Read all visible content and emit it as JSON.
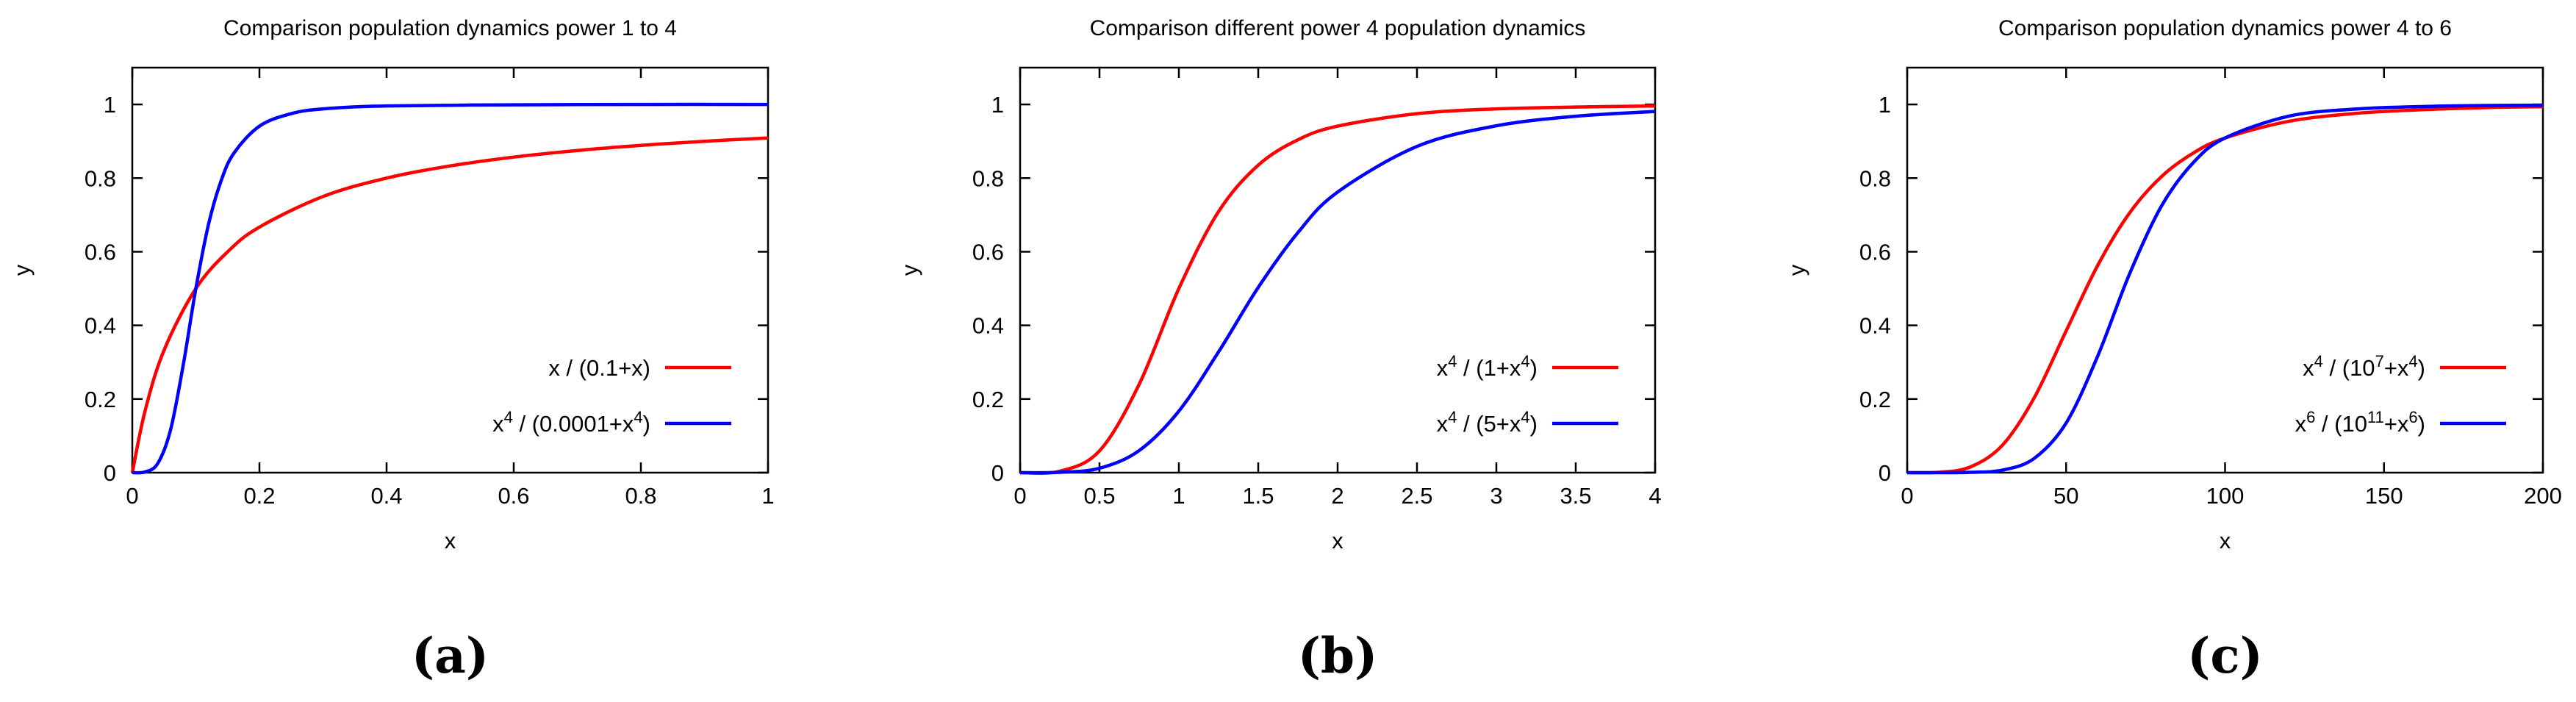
{
  "chart_data": [
    {
      "type": "line",
      "title": "Comparison population dynamics power 1 to 4",
      "xlabel": "x",
      "ylabel": "y",
      "xlim": [
        0,
        1
      ],
      "ylim": [
        0,
        1.1
      ],
      "xticks": [
        "0",
        "0.2",
        "0.4",
        "0.6",
        "0.8",
        "1"
      ],
      "yticks": [
        "0",
        "0.2",
        "0.4",
        "0.6",
        "0.8",
        "1"
      ],
      "legend_position": "lower-right",
      "grid": false,
      "caption": "(a)",
      "series": [
        {
          "name": "x / (0.1+x)",
          "name_parts": [
            {
              "t": "x / (0.1+x)",
              "sup": false
            }
          ],
          "color": "#ff0000",
          "x": [
            0,
            0.02,
            0.05,
            0.1,
            0.15,
            0.2,
            0.3,
            0.4,
            0.5,
            0.6,
            0.7,
            0.8,
            0.9,
            1.0
          ],
          "y": [
            0,
            0.167,
            0.333,
            0.5,
            0.6,
            0.667,
            0.75,
            0.8,
            0.833,
            0.857,
            0.875,
            0.889,
            0.9,
            0.909
          ]
        },
        {
          "name": "x^4 / (0.0001+x^4)",
          "name_parts": [
            {
              "t": "x",
              "sup": false
            },
            {
              "t": "4",
              "sup": true
            },
            {
              "t": " / (0.0001+x",
              "sup": false
            },
            {
              "t": "4",
              "sup": true
            },
            {
              "t": ")",
              "sup": false
            }
          ],
          "color": "#0000ff",
          "x": [
            0,
            0.02,
            0.04,
            0.06,
            0.08,
            0.1,
            0.12,
            0.14,
            0.16,
            0.2,
            0.25,
            0.3,
            0.4,
            0.6,
            0.8,
            1.0
          ],
          "y": [
            0,
            0.002,
            0.025,
            0.115,
            0.291,
            0.5,
            0.675,
            0.794,
            0.868,
            0.941,
            0.975,
            0.988,
            0.996,
            0.999,
            1.0,
            1.0
          ]
        }
      ]
    },
    {
      "type": "line",
      "title": "Comparison different power 4 population dynamics",
      "xlabel": "x",
      "ylabel": "y",
      "xlim": [
        0,
        4
      ],
      "ylim": [
        0,
        1.1
      ],
      "xticks": [
        "0",
        "0.5",
        "1",
        "1.5",
        "2",
        "2.5",
        "3",
        "3.5",
        "4"
      ],
      "yticks": [
        "0",
        "0.2",
        "0.4",
        "0.6",
        "0.8",
        "1"
      ],
      "legend_position": "lower-right",
      "grid": false,
      "caption": "(b)",
      "series": [
        {
          "name": "x^4 / (1+x^4)",
          "name_parts": [
            {
              "t": "x",
              "sup": false
            },
            {
              "t": "4",
              "sup": true
            },
            {
              "t": " / (1+x",
              "sup": false
            },
            {
              "t": "4",
              "sup": true
            },
            {
              "t": ")",
              "sup": false
            }
          ],
          "color": "#ff0000",
          "x": [
            0,
            0.25,
            0.5,
            0.75,
            1.0,
            1.25,
            1.5,
            1.75,
            2.0,
            2.5,
            3.0,
            3.5,
            4.0
          ],
          "y": [
            0,
            0.004,
            0.059,
            0.24,
            0.5,
            0.709,
            0.835,
            0.904,
            0.941,
            0.975,
            0.988,
            0.993,
            0.996
          ]
        },
        {
          "name": "x^4 / (5+x^4)",
          "name_parts": [
            {
              "t": "x",
              "sup": false
            },
            {
              "t": "4",
              "sup": true
            },
            {
              "t": " / (5+x",
              "sup": false
            },
            {
              "t": "4",
              "sup": true
            },
            {
              "t": ")",
              "sup": false
            }
          ],
          "color": "#0000ff",
          "x": [
            0,
            0.25,
            0.5,
            0.75,
            1.0,
            1.25,
            1.5,
            1.75,
            2.0,
            2.5,
            3.0,
            3.5,
            4.0
          ],
          "y": [
            0,
            0.001,
            0.012,
            0.06,
            0.167,
            0.328,
            0.503,
            0.652,
            0.762,
            0.886,
            0.942,
            0.968,
            0.981
          ]
        }
      ]
    },
    {
      "type": "line",
      "title": "Comparison population dynamics power 4 to 6",
      "xlabel": "x",
      "ylabel": "y",
      "xlim": [
        0,
        200
      ],
      "ylim": [
        0,
        1.1
      ],
      "xticks": [
        "0",
        "50",
        "100",
        "150",
        "200"
      ],
      "yticks": [
        "0",
        "0.2",
        "0.4",
        "0.6",
        "0.8",
        "1"
      ],
      "legend_position": "lower-right",
      "grid": false,
      "caption": "(c)",
      "series": [
        {
          "name": "x^4 / (10^7+x^4)",
          "name_parts": [
            {
              "t": "x",
              "sup": false
            },
            {
              "t": "4",
              "sup": true
            },
            {
              "t": " / (10",
              "sup": false
            },
            {
              "t": "7",
              "sup": true
            },
            {
              "t": "+x",
              "sup": false
            },
            {
              "t": "4",
              "sup": true
            },
            {
              "t": ")",
              "sup": false
            }
          ],
          "color": "#ff0000",
          "x": [
            0,
            10,
            20,
            30,
            40,
            50,
            60,
            70,
            80,
            90,
            100,
            120,
            140,
            160,
            180,
            200
          ],
          "y": [
            0,
            0.001,
            0.016,
            0.075,
            0.204,
            0.385,
            0.564,
            0.706,
            0.804,
            0.868,
            0.909,
            0.954,
            0.975,
            0.985,
            0.991,
            0.994
          ]
        },
        {
          "name": "x^6 / (10^11+x^6)",
          "name_parts": [
            {
              "t": "x",
              "sup": false
            },
            {
              "t": "6",
              "sup": true
            },
            {
              "t": " / (10",
              "sup": false
            },
            {
              "t": "11",
              "sup": true
            },
            {
              "t": "+x",
              "sup": false
            },
            {
              "t": "6",
              "sup": true
            },
            {
              "t": ")",
              "sup": false
            }
          ],
          "color": "#0000ff",
          "x": [
            0,
            10,
            20,
            30,
            40,
            50,
            60,
            70,
            80,
            90,
            100,
            120,
            140,
            160,
            180,
            200
          ],
          "y": [
            0,
            0,
            0.001,
            0.007,
            0.039,
            0.135,
            0.318,
            0.541,
            0.724,
            0.842,
            0.909,
            0.968,
            0.987,
            0.994,
            0.997,
            0.998
          ]
        }
      ]
    }
  ]
}
